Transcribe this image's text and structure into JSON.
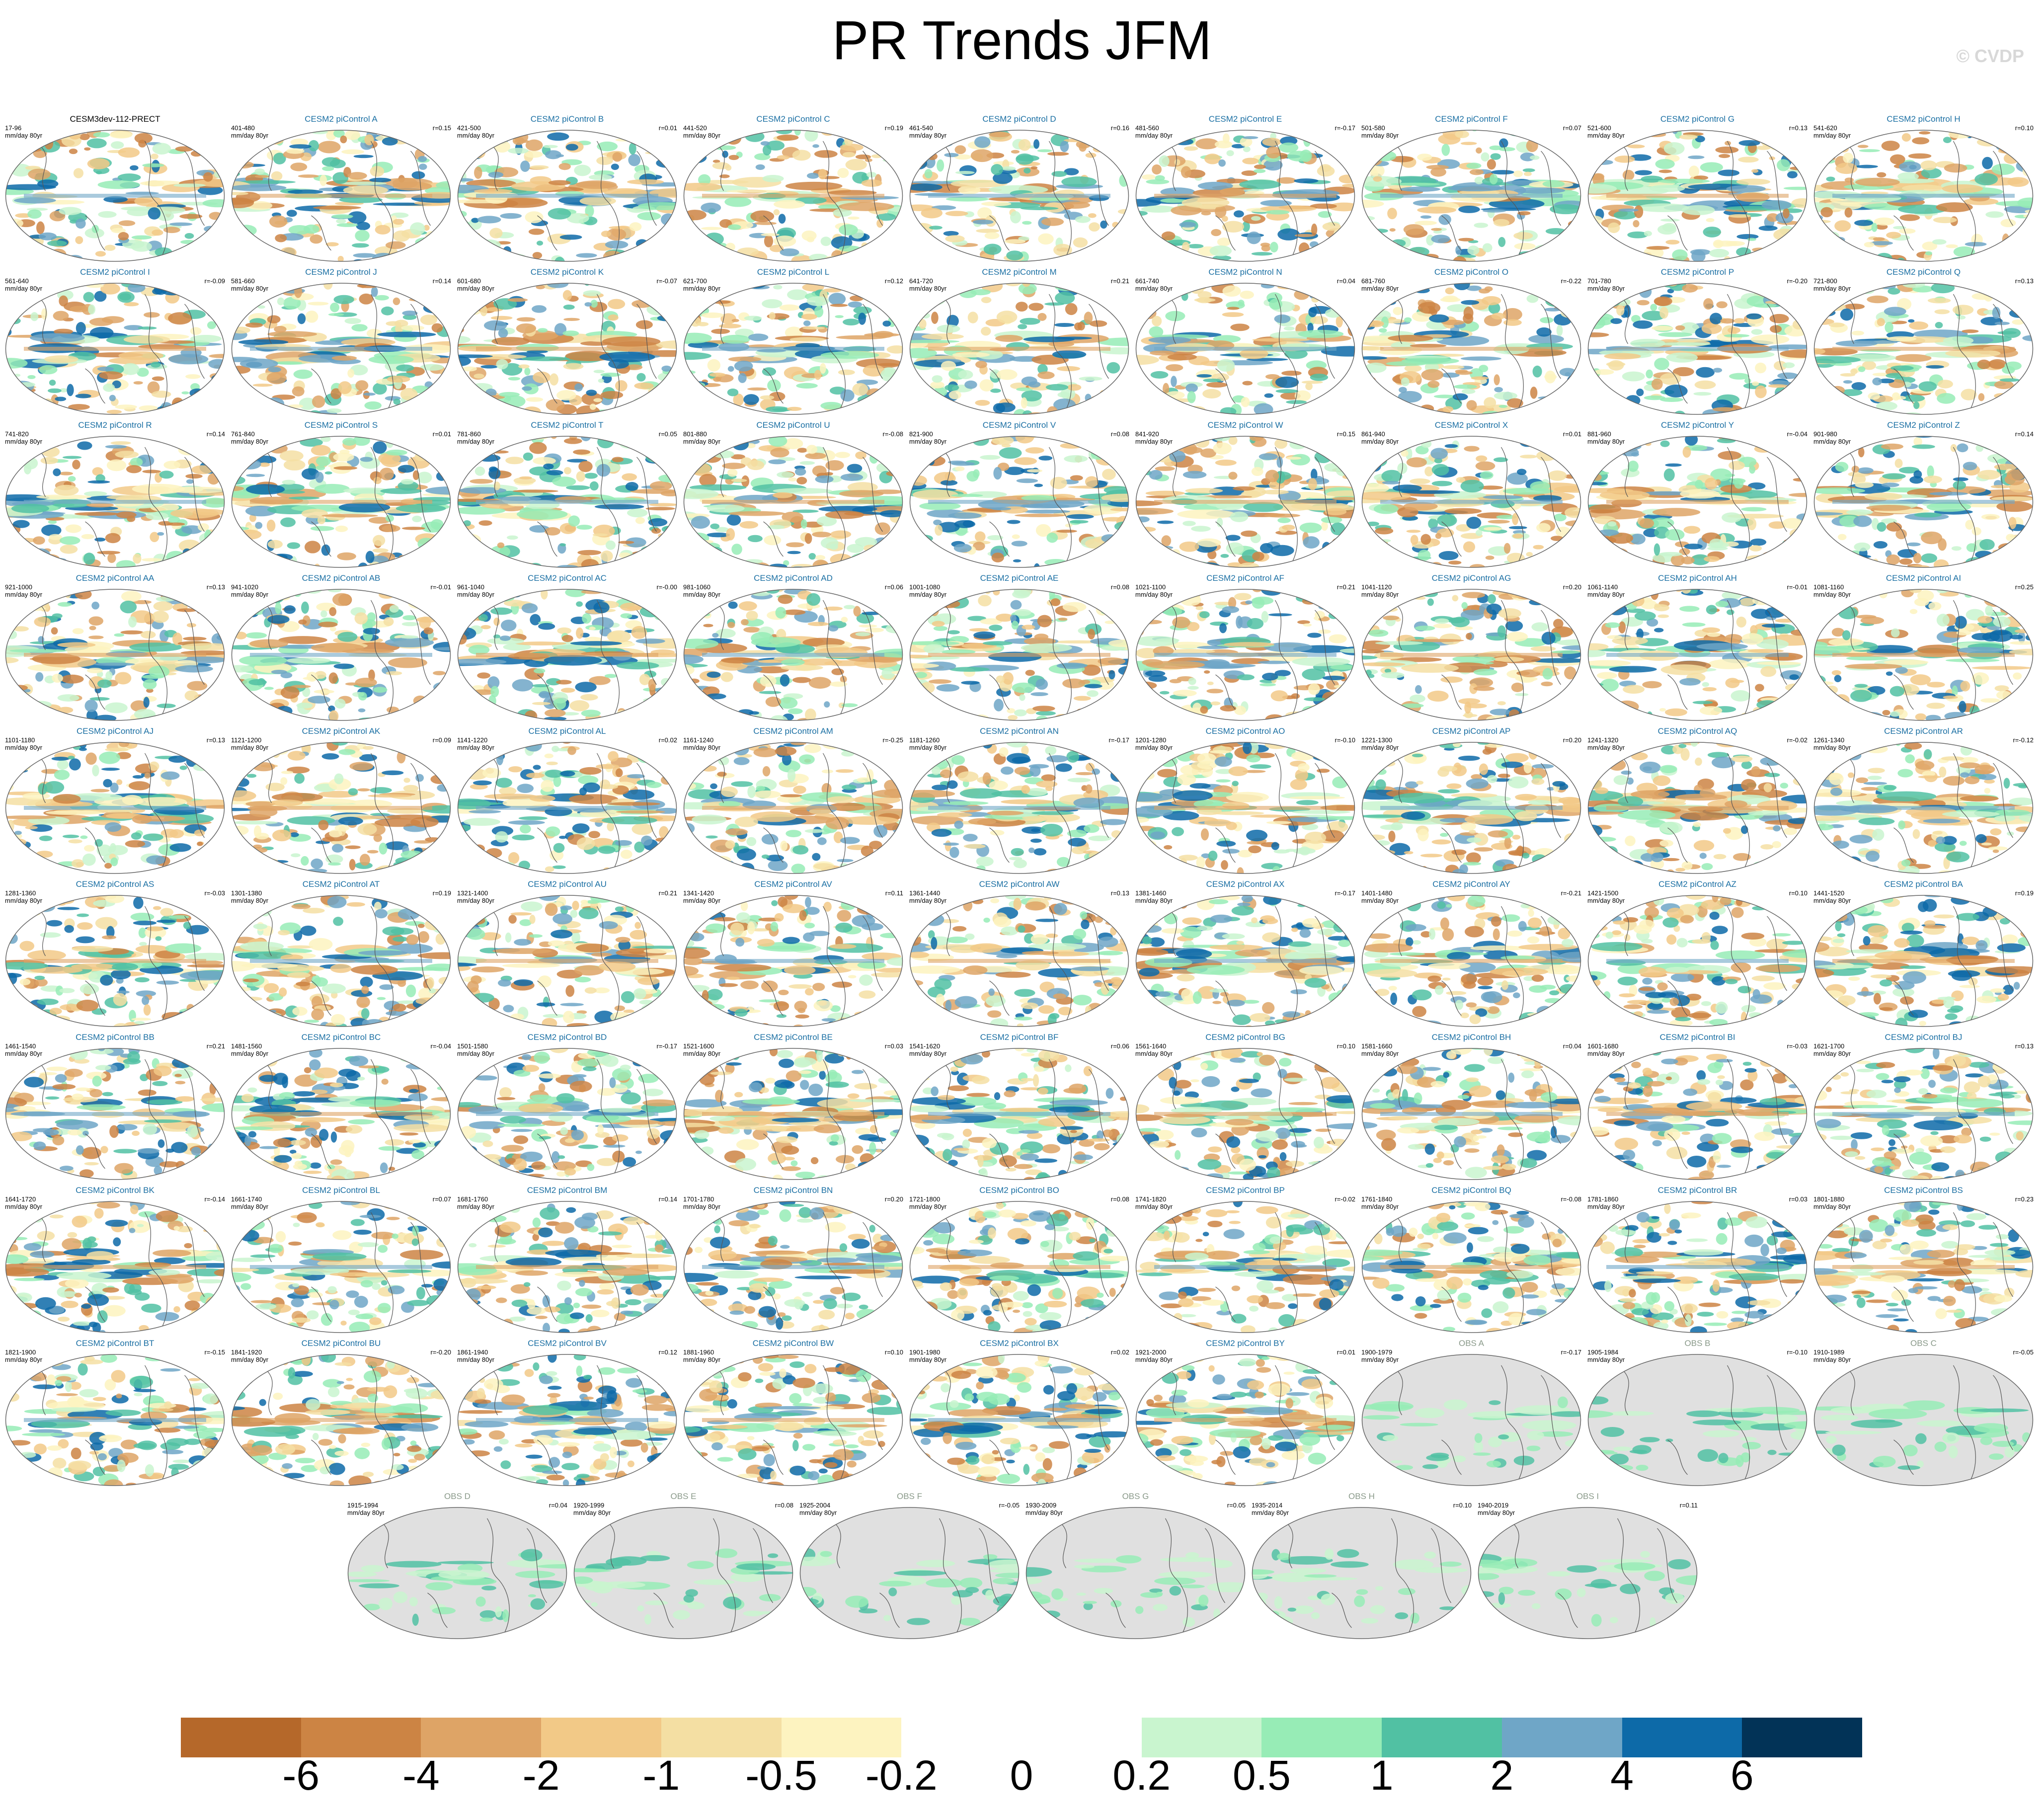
{
  "title": "PR Trends JFM",
  "copyright": "© CVDP",
  "units": "mm/day 80yr",
  "panels": [
    {
      "label": "CESM3dev-112-PRECT",
      "years": "17-96",
      "r": "",
      "kind": "ctrl"
    },
    {
      "label": "CESM2 piControl A",
      "years": "401-480",
      "r": "r=0.15",
      "kind": "pi"
    },
    {
      "label": "CESM2 piControl B",
      "years": "421-500",
      "r": "r=0.01",
      "kind": "pi"
    },
    {
      "label": "CESM2 piControl C",
      "years": "441-520",
      "r": "r=0.19",
      "kind": "pi"
    },
    {
      "label": "CESM2 piControl D",
      "years": "461-540",
      "r": "r=0.16",
      "kind": "pi"
    },
    {
      "label": "CESM2 piControl E",
      "years": "481-560",
      "r": "r=-0.17",
      "kind": "pi"
    },
    {
      "label": "CESM2 piControl F",
      "years": "501-580",
      "r": "r=0.07",
      "kind": "pi"
    },
    {
      "label": "CESM2 piControl G",
      "years": "521-600",
      "r": "r=0.13",
      "kind": "pi"
    },
    {
      "label": "CESM2 piControl H",
      "years": "541-620",
      "r": "r=0.10",
      "kind": "pi"
    },
    {
      "label": "CESM2 piControl I",
      "years": "561-640",
      "r": "r=-0.09",
      "kind": "pi"
    },
    {
      "label": "CESM2 piControl J",
      "years": "581-660",
      "r": "r=0.14",
      "kind": "pi"
    },
    {
      "label": "CESM2 piControl K",
      "years": "601-680",
      "r": "r=-0.07",
      "kind": "pi"
    },
    {
      "label": "CESM2 piControl L",
      "years": "621-700",
      "r": "r=0.12",
      "kind": "pi"
    },
    {
      "label": "CESM2 piControl M",
      "years": "641-720",
      "r": "r=0.21",
      "kind": "pi"
    },
    {
      "label": "CESM2 piControl N",
      "years": "661-740",
      "r": "r=0.04",
      "kind": "pi"
    },
    {
      "label": "CESM2 piControl O",
      "years": "681-760",
      "r": "r=-0.22",
      "kind": "pi"
    },
    {
      "label": "CESM2 piControl P",
      "years": "701-780",
      "r": "r=-0.20",
      "kind": "pi"
    },
    {
      "label": "CESM2 piControl Q",
      "years": "721-800",
      "r": "r=0.13",
      "kind": "pi"
    },
    {
      "label": "CESM2 piControl R",
      "years": "741-820",
      "r": "r=0.14",
      "kind": "pi"
    },
    {
      "label": "CESM2 piControl S",
      "years": "761-840",
      "r": "r=0.01",
      "kind": "pi"
    },
    {
      "label": "CESM2 piControl T",
      "years": "781-860",
      "r": "r=0.05",
      "kind": "pi"
    },
    {
      "label": "CESM2 piControl U",
      "years": "801-880",
      "r": "r=-0.08",
      "kind": "pi"
    },
    {
      "label": "CESM2 piControl V",
      "years": "821-900",
      "r": "r=0.08",
      "kind": "pi"
    },
    {
      "label": "CESM2 piControl W",
      "years": "841-920",
      "r": "r=0.15",
      "kind": "pi"
    },
    {
      "label": "CESM2 piControl X",
      "years": "861-940",
      "r": "r=0.01",
      "kind": "pi"
    },
    {
      "label": "CESM2 piControl Y",
      "years": "881-960",
      "r": "r=-0.04",
      "kind": "pi"
    },
    {
      "label": "CESM2 piControl Z",
      "years": "901-980",
      "r": "r=0.14",
      "kind": "pi"
    },
    {
      "label": "CESM2 piControl AA",
      "years": "921-1000",
      "r": "r=0.13",
      "kind": "pi"
    },
    {
      "label": "CESM2 piControl AB",
      "years": "941-1020",
      "r": "r=-0.01",
      "kind": "pi"
    },
    {
      "label": "CESM2 piControl AC",
      "years": "961-1040",
      "r": "r=-0.00",
      "kind": "pi"
    },
    {
      "label": "CESM2 piControl AD",
      "years": "981-1060",
      "r": "r=0.06",
      "kind": "pi"
    },
    {
      "label": "CESM2 piControl AE",
      "years": "1001-1080",
      "r": "r=0.08",
      "kind": "pi"
    },
    {
      "label": "CESM2 piControl AF",
      "years": "1021-1100",
      "r": "r=0.21",
      "kind": "pi"
    },
    {
      "label": "CESM2 piControl AG",
      "years": "1041-1120",
      "r": "r=0.20",
      "kind": "pi"
    },
    {
      "label": "CESM2 piControl AH",
      "years": "1061-1140",
      "r": "r=-0.01",
      "kind": "pi"
    },
    {
      "label": "CESM2 piControl AI",
      "years": "1081-1160",
      "r": "r=0.25",
      "kind": "pi"
    },
    {
      "label": "CESM2 piControl AJ",
      "years": "1101-1180",
      "r": "r=0.13",
      "kind": "pi"
    },
    {
      "label": "CESM2 piControl AK",
      "years": "1121-1200",
      "r": "r=0.09",
      "kind": "pi"
    },
    {
      "label": "CESM2 piControl AL",
      "years": "1141-1220",
      "r": "r=0.02",
      "kind": "pi"
    },
    {
      "label": "CESM2 piControl AM",
      "years": "1161-1240",
      "r": "r=-0.25",
      "kind": "pi"
    },
    {
      "label": "CESM2 piControl AN",
      "years": "1181-1260",
      "r": "r=-0.17",
      "kind": "pi"
    },
    {
      "label": "CESM2 piControl AO",
      "years": "1201-1280",
      "r": "r=-0.10",
      "kind": "pi"
    },
    {
      "label": "CESM2 piControl AP",
      "years": "1221-1300",
      "r": "r=0.20",
      "kind": "pi"
    },
    {
      "label": "CESM2 piControl AQ",
      "years": "1241-1320",
      "r": "r=-0.02",
      "kind": "pi"
    },
    {
      "label": "CESM2 piControl AR",
      "years": "1261-1340",
      "r": "r=-0.12",
      "kind": "pi"
    },
    {
      "label": "CESM2 piControl AS",
      "years": "1281-1360",
      "r": "r=-0.03",
      "kind": "pi"
    },
    {
      "label": "CESM2 piControl AT",
      "years": "1301-1380",
      "r": "r=0.19",
      "kind": "pi"
    },
    {
      "label": "CESM2 piControl AU",
      "years": "1321-1400",
      "r": "r=0.21",
      "kind": "pi"
    },
    {
      "label": "CESM2 piControl AV",
      "years": "1341-1420",
      "r": "r=0.11",
      "kind": "pi"
    },
    {
      "label": "CESM2 piControl AW",
      "years": "1361-1440",
      "r": "r=0.13",
      "kind": "pi"
    },
    {
      "label": "CESM2 piControl AX",
      "years": "1381-1460",
      "r": "r=-0.17",
      "kind": "pi"
    },
    {
      "label": "CESM2 piControl AY",
      "years": "1401-1480",
      "r": "r=-0.21",
      "kind": "pi"
    },
    {
      "label": "CESM2 piControl AZ",
      "years": "1421-1500",
      "r": "r=0.10",
      "kind": "pi"
    },
    {
      "label": "CESM2 piControl BA",
      "years": "1441-1520",
      "r": "r=0.19",
      "kind": "pi"
    },
    {
      "label": "CESM2 piControl BB",
      "years": "1461-1540",
      "r": "r=0.21",
      "kind": "pi"
    },
    {
      "label": "CESM2 piControl BC",
      "years": "1481-1560",
      "r": "r=-0.04",
      "kind": "pi"
    },
    {
      "label": "CESM2 piControl BD",
      "years": "1501-1580",
      "r": "r=-0.17",
      "kind": "pi"
    },
    {
      "label": "CESM2 piControl BE",
      "years": "1521-1600",
      "r": "r=0.03",
      "kind": "pi"
    },
    {
      "label": "CESM2 piControl BF",
      "years": "1541-1620",
      "r": "r=0.06",
      "kind": "pi"
    },
    {
      "label": "CESM2 piControl BG",
      "years": "1561-1640",
      "r": "r=0.10",
      "kind": "pi"
    },
    {
      "label": "CESM2 piControl BH",
      "years": "1581-1660",
      "r": "r=0.04",
      "kind": "pi"
    },
    {
      "label": "CESM2 piControl BI",
      "years": "1601-1680",
      "r": "r=-0.03",
      "kind": "pi"
    },
    {
      "label": "CESM2 piControl BJ",
      "years": "1621-1700",
      "r": "r=0.13",
      "kind": "pi"
    },
    {
      "label": "CESM2 piControl BK",
      "years": "1641-1720",
      "r": "r=-0.14",
      "kind": "pi"
    },
    {
      "label": "CESM2 piControl BL",
      "years": "1661-1740",
      "r": "r=0.07",
      "kind": "pi"
    },
    {
      "label": "CESM2 piControl BM",
      "years": "1681-1760",
      "r": "r=0.14",
      "kind": "pi"
    },
    {
      "label": "CESM2 piControl BN",
      "years": "1701-1780",
      "r": "r=0.20",
      "kind": "pi"
    },
    {
      "label": "CESM2 piControl BO",
      "years": "1721-1800",
      "r": "r=0.08",
      "kind": "pi"
    },
    {
      "label": "CESM2 piControl BP",
      "years": "1741-1820",
      "r": "r=-0.02",
      "kind": "pi"
    },
    {
      "label": "CESM2 piControl BQ",
      "years": "1761-1840",
      "r": "r=-0.08",
      "kind": "pi"
    },
    {
      "label": "CESM2 piControl BR",
      "years": "1781-1860",
      "r": "r=0.03",
      "kind": "pi"
    },
    {
      "label": "CESM2 piControl BS",
      "years": "1801-1880",
      "r": "r=0.23",
      "kind": "pi"
    },
    {
      "label": "CESM2 piControl BT",
      "years": "1821-1900",
      "r": "r=-0.15",
      "kind": "pi"
    },
    {
      "label": "CESM2 piControl BU",
      "years": "1841-1920",
      "r": "r=-0.20",
      "kind": "pi"
    },
    {
      "label": "CESM2 piControl BV",
      "years": "1861-1940",
      "r": "r=0.12",
      "kind": "pi"
    },
    {
      "label": "CESM2 piControl BW",
      "years": "1881-1960",
      "r": "r=0.10",
      "kind": "pi"
    },
    {
      "label": "CESM2 piControl BX",
      "years": "1901-1980",
      "r": "r=0.02",
      "kind": "pi"
    },
    {
      "label": "CESM2 piControl BY",
      "years": "1921-2000",
      "r": "r=0.01",
      "kind": "pi"
    },
    {
      "label": "OBS A",
      "years": "1900-1979",
      "r": "r=-0.17",
      "kind": "obs"
    },
    {
      "label": "OBS B",
      "years": "1905-1984",
      "r": "r=-0.10",
      "kind": "obs"
    },
    {
      "label": "OBS C",
      "years": "1910-1989",
      "r": "r=-0.05",
      "kind": "obs"
    },
    {
      "label": "OBS D",
      "years": "1915-1994",
      "r": "r=0.04",
      "kind": "obs"
    },
    {
      "label": "OBS E",
      "years": "1920-1999",
      "r": "r=0.08",
      "kind": "obs"
    },
    {
      "label": "OBS F",
      "years": "1925-2004",
      "r": "r=-0.05",
      "kind": "obs"
    },
    {
      "label": "OBS G",
      "years": "1930-2009",
      "r": "r=0.05",
      "kind": "obs"
    },
    {
      "label": "OBS H",
      "years": "1935-2014",
      "r": "r=0.10",
      "kind": "obs"
    },
    {
      "label": "OBS I",
      "years": "1940-2019",
      "r": "r=0.11",
      "kind": "obs"
    }
  ],
  "colorbar": {
    "colors": [
      "#b5682a",
      "#cc8444",
      "#dea466",
      "#f2c987",
      "#f4dfa3",
      "#fdf3c0",
      "#ffffff",
      "#ffffff",
      "#c9f5cf",
      "#97ecb6",
      "#51c1a3",
      "#6fa6c7",
      "#0d6aa8",
      "#023357"
    ],
    "labels": [
      "-6",
      "-4",
      "-2",
      "-1",
      "-0.5",
      "-0.2",
      "0",
      "0.2",
      "0.5",
      "1",
      "2",
      "4",
      "6"
    ]
  },
  "colors": {
    "land_obs": "#e0e0e0",
    "title_pi": "#1a6fa3",
    "title_obs": "#8a9a8a"
  }
}
